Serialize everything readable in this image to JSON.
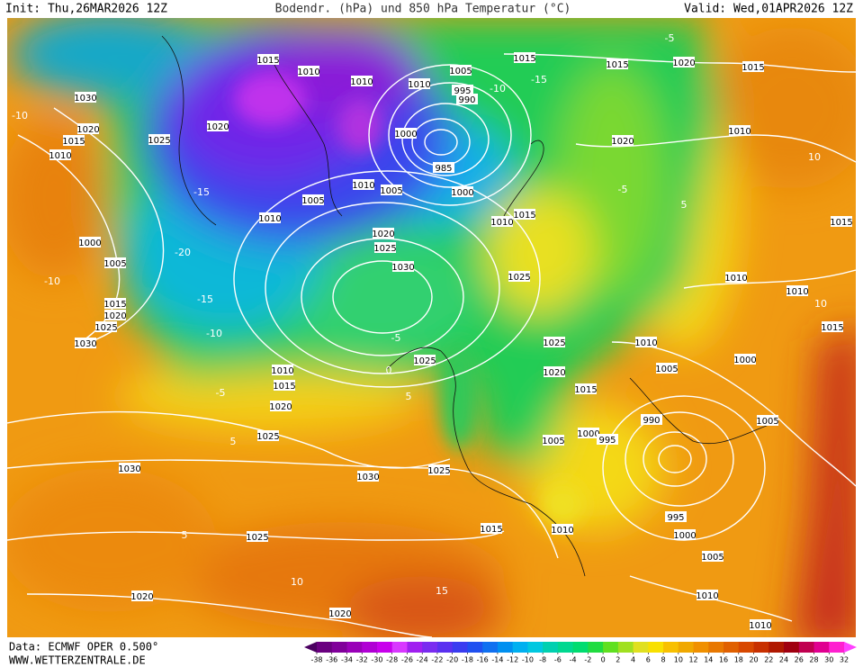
{
  "header": {
    "init": "Init: Thu,26MAR2026 12Z",
    "title": "Bodendr. (hPa) und 850 hPa Temperatur (°C)",
    "valid": "Valid: Wed,01APR2026 12Z"
  },
  "isobar_labels": [
    "1015",
    "1010",
    "1010",
    "1010",
    "1005",
    "995",
    "990",
    "1015",
    "1015",
    "1020",
    "1015",
    "1030",
    "1020",
    "1015",
    "1010",
    "1025",
    "1020",
    "1000",
    "985",
    "1010",
    "1005",
    "1005",
    "1000",
    "1010",
    "1020",
    "1010",
    "1015",
    "1010",
    "1015",
    "1020",
    "1025",
    "1030",
    "1000",
    "1005",
    "1025",
    "1015",
    "1020",
    "1025",
    "1030",
    "1010",
    "1010",
    "1015",
    "1010",
    "1025",
    "1005",
    "1000",
    "1025",
    "1010",
    "1015",
    "1020",
    "1020",
    "1015",
    "990",
    "1005",
    "1000",
    "995",
    "1005",
    "1025",
    "1030",
    "1030",
    "1025",
    "995",
    "1000",
    "1015",
    "1010",
    "1025",
    "1005",
    "1020",
    "1010",
    "1020",
    "1010"
  ],
  "temperature_labels": [
    "-10",
    "-15",
    "-10",
    "-5",
    "-15",
    "-20",
    "-15",
    "-10",
    "-5",
    "0",
    "-5",
    "5",
    "10",
    "15",
    "5",
    "5",
    "-10",
    "5",
    "10",
    "10",
    "-5"
  ],
  "legend": {
    "ticks": [
      -38,
      -36,
      -34,
      -32,
      -30,
      -28,
      -26,
      -24,
      -22,
      -20,
      -18,
      -16,
      -14,
      -12,
      -10,
      -8,
      -6,
      -4,
      -2,
      0,
      2,
      4,
      6,
      8,
      10,
      12,
      14,
      16,
      18,
      20,
      22,
      24,
      26,
      28,
      30,
      32
    ],
    "colors": [
      "#6a0080",
      "#80009a",
      "#9900b8",
      "#b000d4",
      "#c800ec",
      "#d838ff",
      "#a020f0",
      "#7a2cf0",
      "#5a30f0",
      "#3a3cf0",
      "#2050f0",
      "#1070f0",
      "#0090f0",
      "#00b0f0",
      "#00c8e0",
      "#00d0b0",
      "#00d890",
      "#00dc70",
      "#20dc40",
      "#60e020",
      "#a0e020",
      "#e0e020",
      "#f8e000",
      "#f8c000",
      "#f0a800",
      "#f09000",
      "#e87800",
      "#e06000",
      "#d84800",
      "#c83000",
      "#b01800",
      "#a00010",
      "#c00050",
      "#e00090",
      "#ff20d0"
    ],
    "low_color": "#4b0060",
    "high_color": "#ff40ff"
  },
  "footer": {
    "source": "Data: ECMWF OPER 0.500°",
    "site": "WWW.WETTERZENTRALE.DE"
  }
}
